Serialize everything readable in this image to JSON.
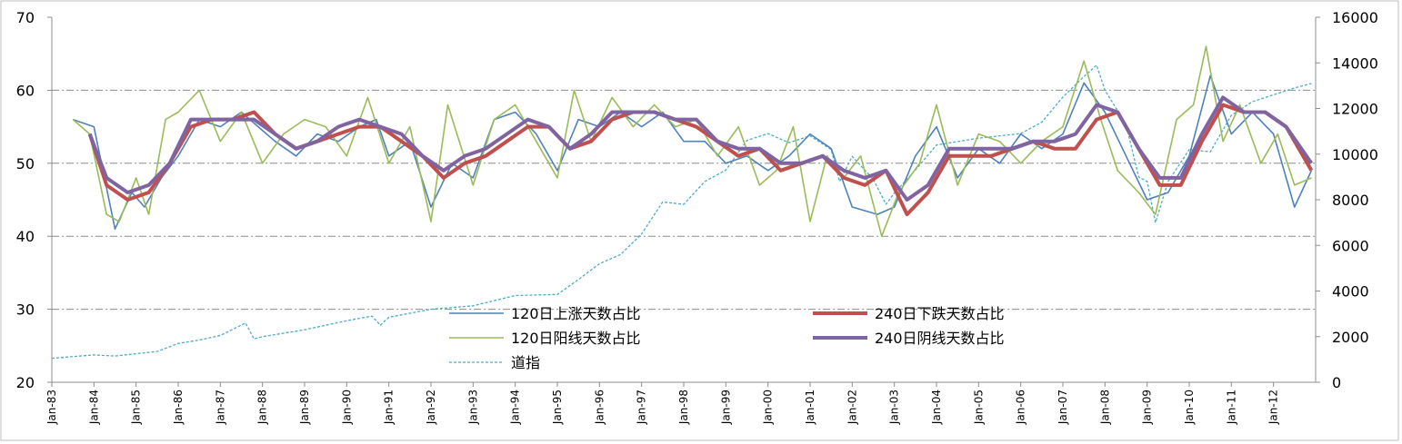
{
  "chart_data": {
    "type": "line",
    "title": "",
    "xlabel": "",
    "ylabel": "",
    "y_left": {
      "lim": [
        20,
        70
      ],
      "ticks": [
        "20",
        "30",
        "40",
        "50",
        "60",
        "70"
      ]
    },
    "y_right": {
      "lim": [
        0,
        16000
      ],
      "ticks": [
        "0",
        "2000",
        "4000",
        "6000",
        "8000",
        "10000",
        "12000",
        "14000",
        "16000"
      ]
    },
    "x_ticks": [
      "Jan-83",
      "Jan-84",
      "Jan-85",
      "Jan-86",
      "Jan-87",
      "Jan-88",
      "Jan-89",
      "Jan-90",
      "Jan-91",
      "Jan-92",
      "Jan-93",
      "Jan-94",
      "Jan-95",
      "Jan-96",
      "Jan-97",
      "Jan-98",
      "Jan-99",
      "Jan-00",
      "Jan-01",
      "Jan-02",
      "Jan-03",
      "Jan-04",
      "Jan-05",
      "Jan-06",
      "Jan-07",
      "Jan-08",
      "Jan-09",
      "Jan-10",
      "Jan-11",
      "Jan-12"
    ],
    "grid": "horizontal dash-dot",
    "legend_position": "lower-center",
    "series": [
      {
        "name": "120日上涨天数占比",
        "axis": "left",
        "color": "#4f81bd",
        "x": [
          1983.5,
          1984,
          1984.5,
          1984.9,
          1985.2,
          1985.6,
          1986,
          1986.5,
          1987,
          1987.5,
          1987.9,
          1988.3,
          1988.8,
          1989.3,
          1989.8,
          1990.3,
          1990.7,
          1991,
          1991.5,
          1992,
          1992.5,
          1993,
          1993.5,
          1994,
          1994.5,
          1995,
          1995.5,
          1996,
          1996.5,
          1997,
          1997.5,
          1998,
          1998.5,
          1999,
          1999.5,
          2000,
          2000.5,
          2001,
          2001.5,
          2002,
          2002.6,
          2003,
          2003.5,
          2004,
          2004.5,
          2005,
          2005.5,
          2006,
          2006.5,
          2007,
          2007.5,
          2008,
          2008.5,
          2009,
          2009.5,
          2010,
          2010.5,
          2011,
          2011.5,
          2012,
          2012.5,
          2012.9
        ],
        "y": [
          56,
          55,
          41,
          46,
          44,
          48,
          51,
          56,
          55,
          57,
          55,
          53,
          51,
          54,
          53,
          55,
          56,
          51,
          53,
          44,
          50,
          48,
          56,
          57,
          54,
          49,
          56,
          55,
          57,
          55,
          57,
          53,
          53,
          50,
          51,
          49,
          51,
          54,
          52,
          44,
          43,
          44,
          51,
          55,
          48,
          52,
          50,
          54,
          52,
          54,
          61,
          57,
          51,
          45,
          46,
          51,
          62,
          54,
          57,
          54,
          44,
          49
        ]
      },
      {
        "name": "240日下跌天数占比",
        "axis": "left",
        "color": "#c0504d",
        "x": [
          1983.9,
          1984.3,
          1984.8,
          1985.3,
          1985.8,
          1986.3,
          1986.8,
          1987.3,
          1987.8,
          1988.3,
          1988.8,
          1989.3,
          1989.8,
          1990.3,
          1990.8,
          1991.3,
          1991.8,
          1992.3,
          1992.8,
          1993.3,
          1993.8,
          1994.3,
          1994.8,
          1995.3,
          1995.8,
          1996.3,
          1996.8,
          1997.3,
          1997.8,
          1998.3,
          1998.8,
          1999.3,
          1999.8,
          2000.3,
          2000.8,
          2001.3,
          2001.8,
          2002.3,
          2002.8,
          2003.3,
          2003.8,
          2004.3,
          2004.8,
          2005.3,
          2005.8,
          2006.3,
          2006.8,
          2007.3,
          2007.8,
          2008.3,
          2008.8,
          2009.3,
          2009.8,
          2010.3,
          2010.8,
          2011.3,
          2011.8,
          2012.3,
          2012.9
        ],
        "y": [
          54,
          47,
          45,
          46,
          50,
          55,
          56,
          56,
          57,
          54,
          52,
          53,
          54,
          55,
          55,
          53,
          51,
          48,
          50,
          51,
          53,
          55,
          55,
          52,
          53,
          56,
          57,
          57,
          56,
          55,
          53,
          51,
          52,
          49,
          50,
          51,
          48,
          47,
          49,
          43,
          46,
          51,
          51,
          51,
          52,
          53,
          52,
          52,
          56,
          57,
          52,
          47,
          47,
          53,
          58,
          57,
          57,
          55,
          49
        ]
      },
      {
        "name": "120日阳线天数占比",
        "axis": "left",
        "color": "#9bbb59",
        "x": [
          1983.5,
          1983.9,
          1984.3,
          1984.6,
          1985,
          1985.3,
          1985.7,
          1986,
          1986.5,
          1987,
          1987.5,
          1988,
          1988.5,
          1989,
          1989.5,
          1990,
          1990.5,
          1991,
          1991.5,
          1992,
          1992.4,
          1993,
          1993.5,
          1994,
          1994.5,
          1995,
          1995.4,
          1995.8,
          1996.3,
          1996.8,
          1997.3,
          1997.8,
          1998.3,
          1998.8,
          1999.3,
          1999.8,
          2000.2,
          2000.6,
          2001,
          2001.4,
          2001.8,
          2002.2,
          2002.7,
          2003.1,
          2003.6,
          2004,
          2004.5,
          2005,
          2005.5,
          2006,
          2006.5,
          2007,
          2007.5,
          2007.9,
          2008.3,
          2008.8,
          2009.2,
          2009.7,
          2010.1,
          2010.4,
          2010.8,
          2011.2,
          2011.7,
          2012.1,
          2012.5,
          2012.9
        ],
        "y": [
          56,
          54,
          43,
          42,
          48,
          43,
          56,
          57,
          60,
          53,
          57,
          50,
          54,
          56,
          55,
          51,
          59,
          50,
          55,
          42,
          58,
          47,
          56,
          58,
          53,
          48,
          60,
          53,
          59,
          55,
          58,
          55,
          56,
          51,
          55,
          47,
          49,
          55,
          42,
          51,
          48,
          51,
          40,
          46,
          50,
          58,
          47,
          54,
          53,
          50,
          53,
          55,
          64,
          56,
          49,
          46,
          43,
          56,
          58,
          66,
          53,
          58,
          50,
          54,
          47,
          48
        ]
      },
      {
        "name": "240日阴线天数占比",
        "axis": "left",
        "color": "#8064a2",
        "x": [
          1983.9,
          1984.3,
          1984.8,
          1985.3,
          1985.8,
          1986.3,
          1986.8,
          1987.3,
          1987.8,
          1988.3,
          1988.8,
          1989.3,
          1989.8,
          1990.3,
          1990.8,
          1991.3,
          1991.8,
          1992.3,
          1992.8,
          1993.3,
          1993.8,
          1994.3,
          1994.8,
          1995.3,
          1995.8,
          1996.3,
          1996.8,
          1997.3,
          1997.8,
          1998.3,
          1998.8,
          1999.3,
          1999.8,
          2000.3,
          2000.8,
          2001.3,
          2001.8,
          2002.3,
          2002.8,
          2003.3,
          2003.8,
          2004.3,
          2004.8,
          2005.3,
          2005.8,
          2006.3,
          2006.8,
          2007.3,
          2007.8,
          2008.3,
          2008.8,
          2009.3,
          2009.8,
          2010.3,
          2010.8,
          2011.3,
          2011.8,
          2012.3,
          2012.9
        ],
        "y": [
          54,
          48,
          46,
          47,
          50,
          56,
          56,
          56,
          56,
          54,
          52,
          53,
          55,
          56,
          55,
          54,
          51,
          49,
          51,
          52,
          54,
          56,
          55,
          52,
          54,
          57,
          57,
          57,
          56,
          56,
          53,
          52,
          52,
          50,
          50,
          51,
          49,
          48,
          49,
          45,
          47,
          52,
          52,
          52,
          52,
          53,
          53,
          54,
          58,
          57,
          52,
          48,
          48,
          54,
          59,
          57,
          57,
          55,
          50
        ]
      },
      {
        "name": "道指",
        "axis": "right",
        "color": "#4bacc6",
        "dashed": true,
        "x": [
          1983,
          1984,
          1984.5,
          1985,
          1985.5,
          1986,
          1986.5,
          1987,
          1987.6,
          1987.8,
          1988,
          1989,
          1990,
          1990.6,
          1990.8,
          1991,
          1992,
          1993,
          1994,
          1995,
          1995.5,
          1996,
          1996.5,
          1997,
          1997.5,
          1998,
          1998.5,
          1999,
          1999.5,
          2000,
          2000.5,
          2001,
          2001.5,
          2001.7,
          2002,
          2002.5,
          2002.8,
          2003,
          2003.5,
          2004,
          2005,
          2006,
          2006.5,
          2007,
          2007.5,
          2007.8,
          2008,
          2008.5,
          2008.8,
          2009,
          2009.2,
          2009.5,
          2010,
          2010.5,
          2011,
          2011.5,
          2012,
          2012.5,
          2012.9
        ],
        "y": [
          1050,
          1200,
          1150,
          1250,
          1350,
          1700,
          1850,
          2050,
          2600,
          1900,
          2000,
          2300,
          2700,
          2900,
          2500,
          2850,
          3200,
          3350,
          3800,
          3850,
          4500,
          5200,
          5600,
          6500,
          7900,
          7800,
          8800,
          9300,
          10600,
          10900,
          10500,
          10800,
          10200,
          8800,
          9900,
          8900,
          7800,
          8300,
          9300,
          10400,
          10700,
          10900,
          11400,
          12500,
          13400,
          13900,
          12800,
          11300,
          9000,
          8800,
          7000,
          8800,
          10200,
          10100,
          11700,
          12300,
          12600,
          12900,
          13100
        ]
      }
    ]
  }
}
